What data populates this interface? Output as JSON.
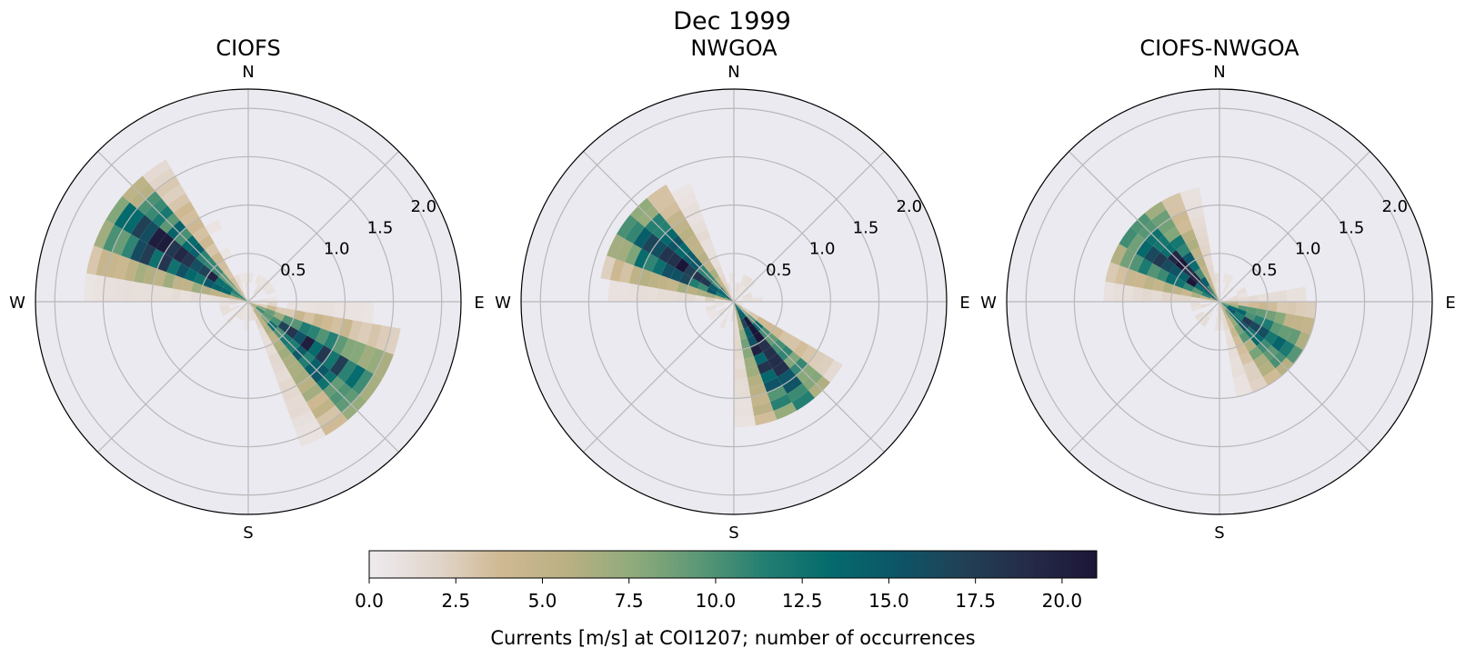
{
  "suptitle": "Dec 1999",
  "chart_data": {
    "type": "heatmap",
    "figure_type": "polar-histogram-rose",
    "suptitle": "Dec 1999",
    "panels": [
      {
        "title": "CIOFS",
        "directions": [
          "N",
          "E",
          "S",
          "W"
        ],
        "rmax": 2.2,
        "rticks": [
          0.5,
          1.0,
          1.5,
          2.0
        ],
        "rtick_labels": [
          "0.5",
          "1.0",
          "1.5",
          "2.0"
        ],
        "grid": true,
        "lobes": [
          {
            "dir_deg": 303,
            "peak_speed": 0.85,
            "peak_count": 20,
            "extent": 1.7,
            "spread_deg": 12
          },
          {
            "dir_deg": 127,
            "peak_speed": 0.8,
            "peak_count": 17,
            "extent": 1.55,
            "spread_deg": 13
          }
        ]
      },
      {
        "title": "NWGOA",
        "directions": [
          "N",
          "E",
          "S",
          "W"
        ],
        "rmax": 2.2,
        "rticks": [
          0.5,
          1.0,
          1.5,
          2.0
        ],
        "rtick_labels": [
          "0.5",
          "1.0",
          "1.5",
          "2.0"
        ],
        "grid": true,
        "lobes": [
          {
            "dir_deg": 305,
            "peak_speed": 0.6,
            "peak_count": 19,
            "extent": 1.35,
            "spread_deg": 13
          },
          {
            "dir_deg": 148,
            "peak_speed": 0.55,
            "peak_count": 21,
            "extent": 1.25,
            "spread_deg": 12
          }
        ]
      },
      {
        "title": "CIOFS-NWGOA",
        "directions": [
          "N",
          "E",
          "S",
          "W"
        ],
        "rmax": 2.2,
        "rticks": [
          0.5,
          1.0,
          1.5,
          2.0
        ],
        "rtick_labels": [
          "0.5",
          "1.0",
          "1.5",
          "2.0"
        ],
        "grid": true,
        "lobes": [
          {
            "dir_deg": 310,
            "peak_speed": 0.5,
            "peak_count": 19,
            "extent": 1.15,
            "spread_deg": 16
          },
          {
            "dir_deg": 125,
            "peak_speed": 0.4,
            "peak_count": 15,
            "extent": 0.95,
            "spread_deg": 18
          }
        ]
      }
    ],
    "colorbar": {
      "label": "Currents [m/s] at COI1207; number of occurrences",
      "vmin": 0,
      "vmax": 21,
      "ticks": [
        0.0,
        2.5,
        5.0,
        7.5,
        10.0,
        12.5,
        15.0,
        17.5,
        20.0
      ],
      "tick_labels": [
        "0.0",
        "2.5",
        "5.0",
        "7.5",
        "10.0",
        "12.5",
        "15.0",
        "17.5",
        "20.0"
      ],
      "colormap": [
        "#eeebef",
        "#e2d6cc",
        "#cfb993",
        "#b9b083",
        "#8fab7b",
        "#5a9775",
        "#227e72",
        "#046a6c",
        "#0d5567",
        "#214055",
        "#252a49",
        "#1b1638"
      ]
    },
    "axes_facecolor": "#ebeaf1",
    "grid_color": "#b8b8b8"
  }
}
